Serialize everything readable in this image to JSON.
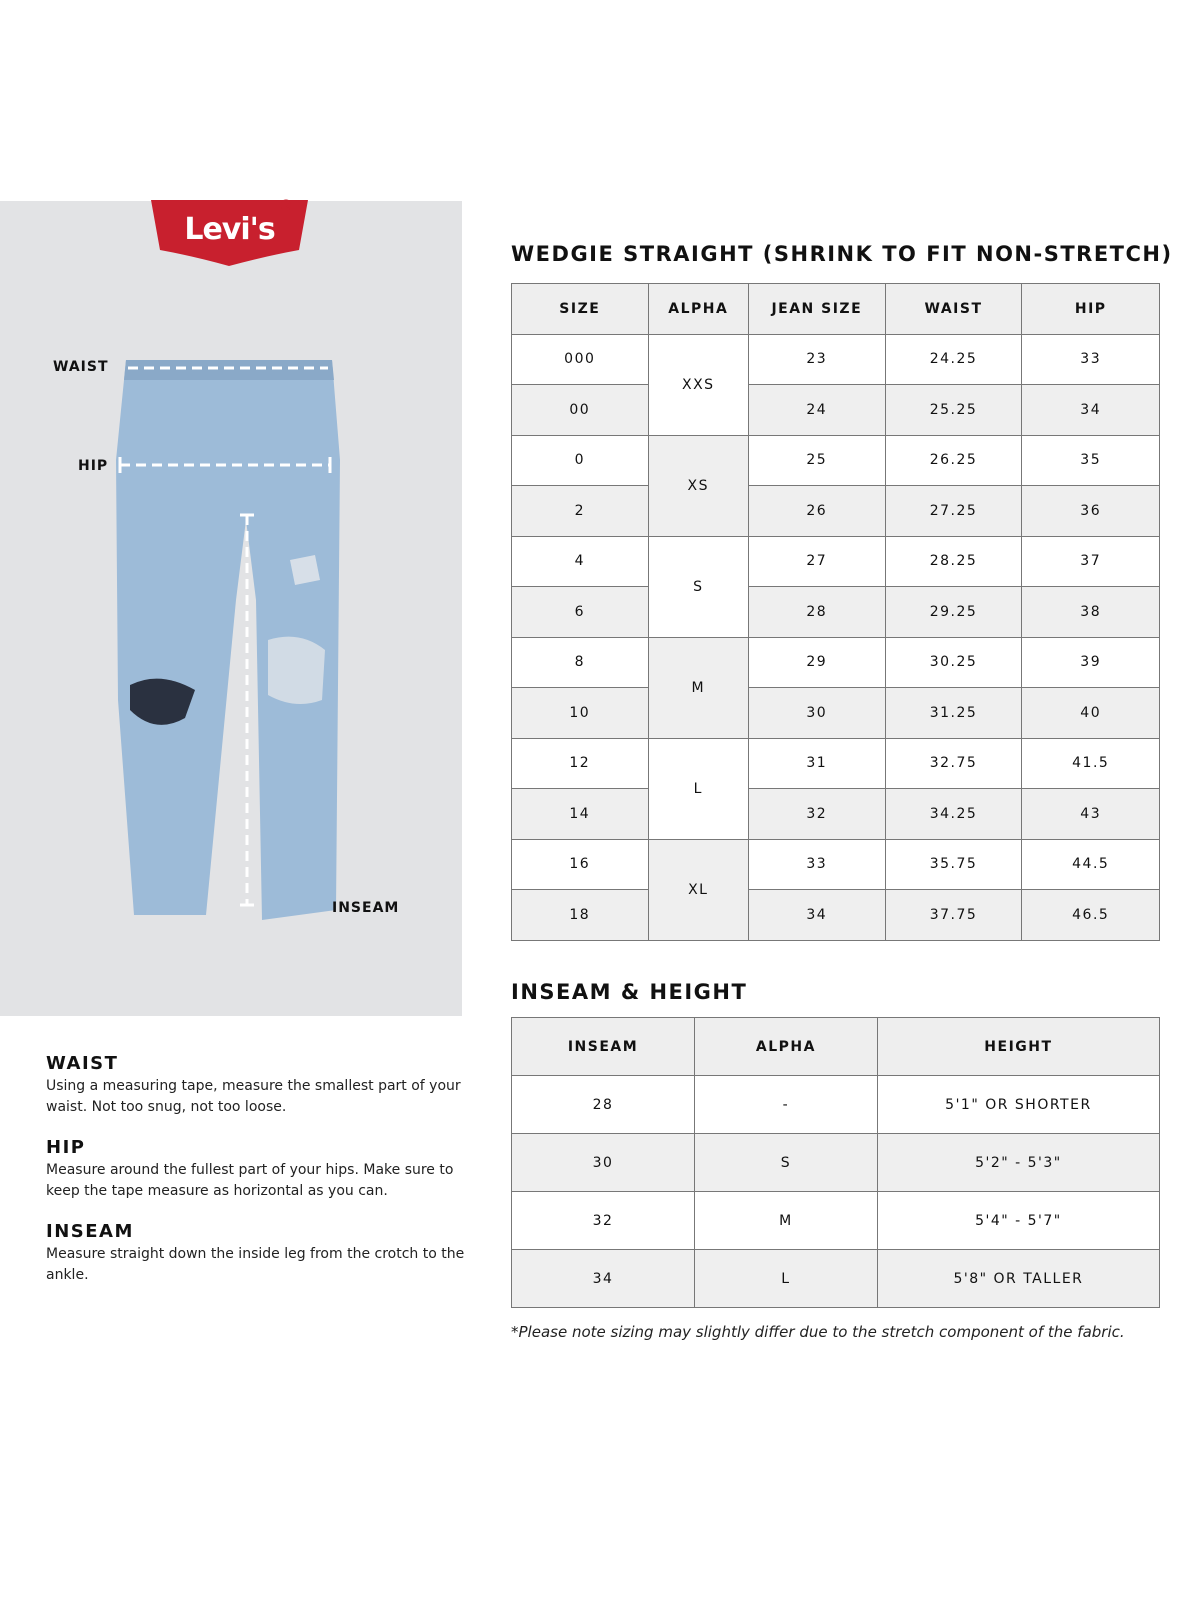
{
  "brand": {
    "logo_text": "Levi's",
    "registered": "®",
    "color": "#c8202e"
  },
  "diagram": {
    "labels": {
      "waist": "WAIST",
      "hip": "HIP",
      "inseam": "INSEAM"
    }
  },
  "instructions": [
    {
      "title": "WAIST",
      "text": "Using a measuring tape, measure the smallest part of your waist. Not too snug, not too loose."
    },
    {
      "title": "HIP",
      "text": "Measure around the fullest part of your hips. Make sure to keep the tape measure as horizontal as you can."
    },
    {
      "title": "INSEAM",
      "text": "Measure straight down the inside leg from the crotch to the ankle."
    }
  ],
  "size_table": {
    "title": "WEDGIE STRAIGHT (SHRINK TO FIT NON-STRETCH)",
    "headers": [
      "SIZE",
      "ALPHA",
      "JEAN SIZE",
      "WAIST",
      "HIP"
    ],
    "rows": [
      {
        "size": "000",
        "alpha": "XXS",
        "jean": "23",
        "waist": "24.25",
        "hip": "33"
      },
      {
        "size": "00",
        "jean": "24",
        "waist": "25.25",
        "hip": "34"
      },
      {
        "size": "0",
        "alpha": "XS",
        "jean": "25",
        "waist": "26.25",
        "hip": "35"
      },
      {
        "size": "2",
        "jean": "26",
        "waist": "27.25",
        "hip": "36"
      },
      {
        "size": "4",
        "alpha": "S",
        "jean": "27",
        "waist": "28.25",
        "hip": "37"
      },
      {
        "size": "6",
        "jean": "28",
        "waist": "29.25",
        "hip": "38"
      },
      {
        "size": "8",
        "alpha": "M",
        "jean": "29",
        "waist": "30.25",
        "hip": "39"
      },
      {
        "size": "10",
        "jean": "30",
        "waist": "31.25",
        "hip": "40"
      },
      {
        "size": "12",
        "alpha": "L",
        "jean": "31",
        "waist": "32.75",
        "hip": "41.5"
      },
      {
        "size": "14",
        "jean": "32",
        "waist": "34.25",
        "hip": "43"
      },
      {
        "size": "16",
        "alpha": "XL",
        "jean": "33",
        "waist": "35.75",
        "hip": "44.5"
      },
      {
        "size": "18",
        "jean": "34",
        "waist": "37.75",
        "hip": "46.5"
      }
    ]
  },
  "inseam_table": {
    "title": "INSEAM & HEIGHT",
    "headers": [
      "INSEAM",
      "ALPHA",
      "HEIGHT"
    ],
    "rows": [
      {
        "inseam": "28",
        "alpha": "-",
        "height": "5'1\" OR SHORTER"
      },
      {
        "inseam": "30",
        "alpha": "S",
        "height": "5'2\" - 5'3\""
      },
      {
        "inseam": "32",
        "alpha": "M",
        "height": "5'4\" - 5'7\""
      },
      {
        "inseam": "34",
        "alpha": "L",
        "height": "5'8\" OR TALLER"
      }
    ]
  },
  "footnote": "*Please note sizing may slightly differ due to the stretch component of the fabric."
}
